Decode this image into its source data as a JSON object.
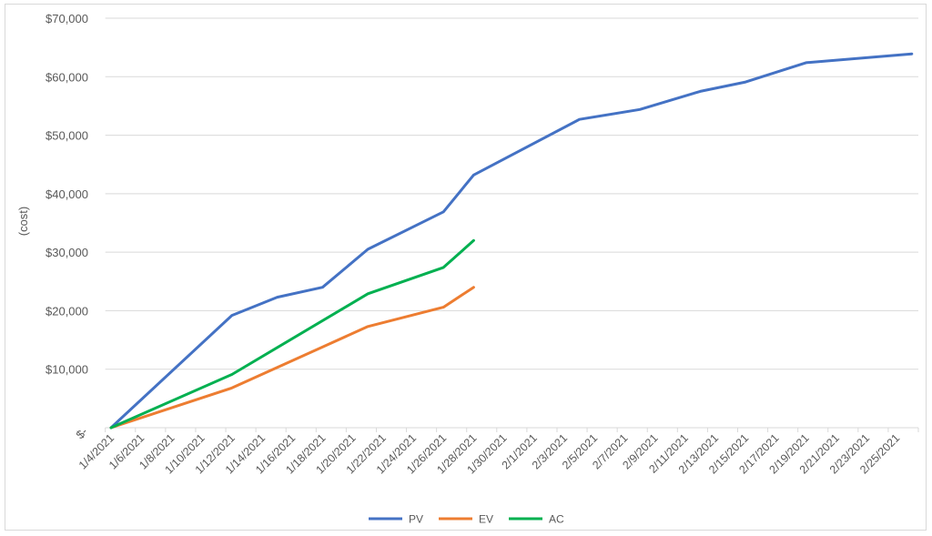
{
  "chart_data": {
    "type": "line",
    "title": "",
    "xlabel": "",
    "ylabel": "(cost)",
    "ylim": [
      0,
      70000
    ],
    "yticks": [
      0,
      10000,
      20000,
      30000,
      40000,
      50000,
      60000,
      70000
    ],
    "ytick_labels": [
      "$-",
      "$10,000",
      "$20,000",
      "$30,000",
      "$40,000",
      "$50,000",
      "$60,000",
      "$70,000"
    ],
    "xtick_labels": [
      "1/4/2021",
      "1/6/2021",
      "1/8/2021",
      "1/10/2021",
      "1/12/2021",
      "1/14/2021",
      "1/16/2021",
      "1/18/2021",
      "1/20/2021",
      "1/22/2021",
      "1/24/2021",
      "1/26/2021",
      "1/28/2021",
      "1/30/2021",
      "2/1/2021",
      "2/3/2021",
      "2/5/2021",
      "2/7/2021",
      "2/9/2021",
      "2/11/2021",
      "2/13/2021",
      "2/15/2021",
      "2/17/2021",
      "2/19/2021",
      "2/21/2021",
      "2/23/2021",
      "2/25/2021"
    ],
    "grid": true,
    "legend_position": "bottom",
    "series": [
      {
        "name": "PV",
        "color": "#4472C4",
        "points": [
          {
            "x": "1/4/2021",
            "day": 0,
            "y": 0
          },
          {
            "x": "1/12/2021",
            "day": 8,
            "y": 19200
          },
          {
            "x": "1/15/2021",
            "day": 11,
            "y": 22300
          },
          {
            "x": "1/18/2021",
            "day": 14,
            "y": 24000
          },
          {
            "x": "1/21/2021",
            "day": 17,
            "y": 30500
          },
          {
            "x": "1/26/2021",
            "day": 22,
            "y": 36900
          },
          {
            "x": "1/28/2021",
            "day": 24,
            "y": 43200
          },
          {
            "x": "2/4/2021",
            "day": 31,
            "y": 52700
          },
          {
            "x": "2/8/2021",
            "day": 35,
            "y": 54400
          },
          {
            "x": "2/12/2021",
            "day": 39,
            "y": 57500
          },
          {
            "x": "2/15/2021",
            "day": 42,
            "y": 59100
          },
          {
            "x": "2/19/2021",
            "day": 46,
            "y": 62400
          },
          {
            "x": "2/26/2021",
            "day": 53,
            "y": 63900
          }
        ]
      },
      {
        "name": "EV",
        "color": "#ED7D31",
        "points": [
          {
            "x": "1/4/2021",
            "day": 0,
            "y": 0
          },
          {
            "x": "1/12/2021",
            "day": 8,
            "y": 6800
          },
          {
            "x": "1/21/2021",
            "day": 17,
            "y": 17300
          },
          {
            "x": "1/26/2021",
            "day": 22,
            "y": 20600
          },
          {
            "x": "1/28/2021",
            "day": 24,
            "y": 24000
          }
        ]
      },
      {
        "name": "AC",
        "color": "#00B050",
        "points": [
          {
            "x": "1/4/2021",
            "day": 0,
            "y": 0
          },
          {
            "x": "1/12/2021",
            "day": 8,
            "y": 9100
          },
          {
            "x": "1/21/2021",
            "day": 17,
            "y": 22900
          },
          {
            "x": "1/26/2021",
            "day": 22,
            "y": 27400
          },
          {
            "x": "1/28/2021",
            "day": 24,
            "y": 32000
          }
        ]
      }
    ]
  }
}
